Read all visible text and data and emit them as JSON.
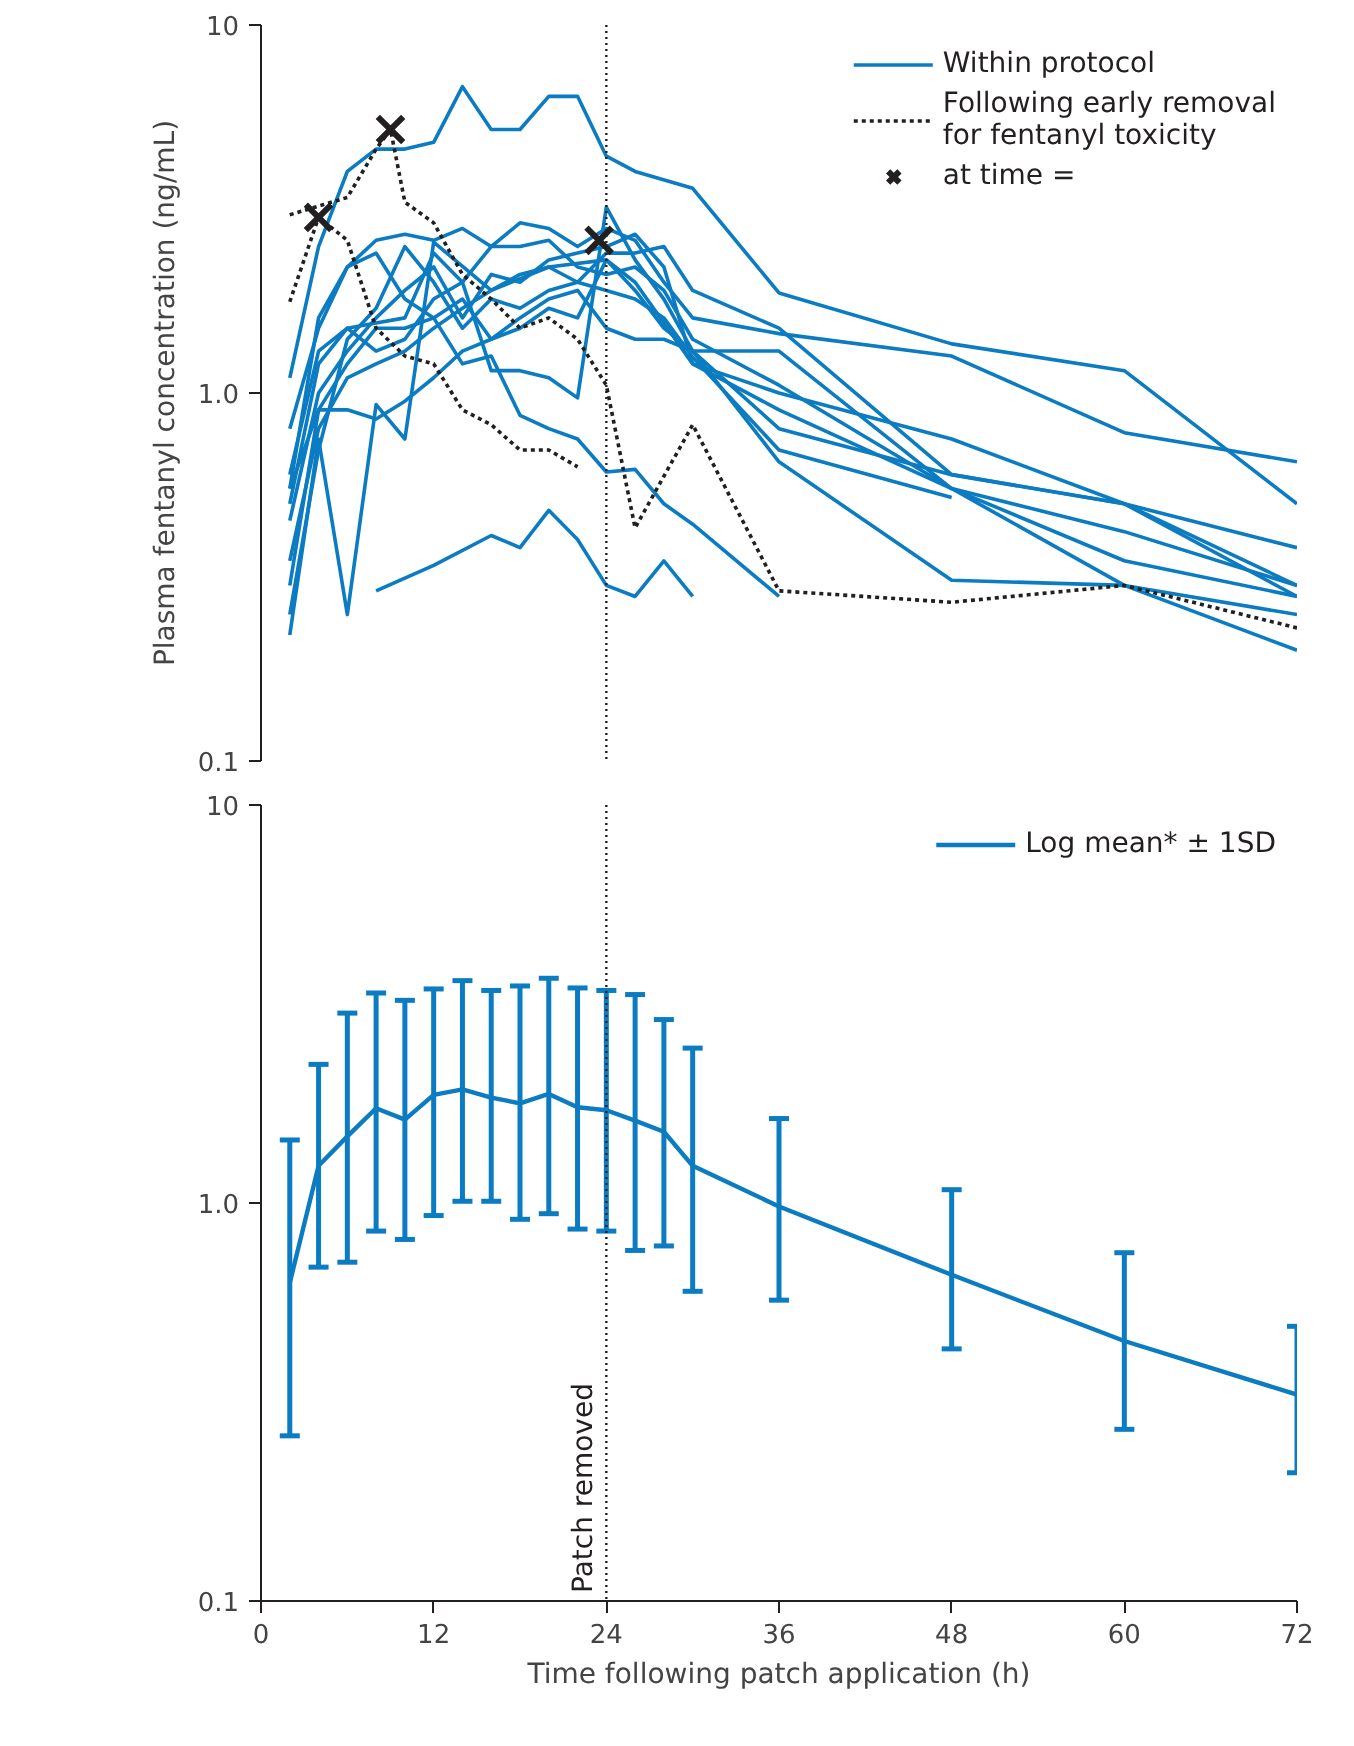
{
  "chart_data": [
    {
      "type": "line",
      "ylabel": "Plasma fentanyl concentration (ng/mL)",
      "xlim": [
        0,
        72
      ],
      "ylim": [
        0.1,
        10
      ],
      "yticks": [
        0.1,
        {
          "value": 1,
          "label": "1.0"
        },
        10
      ],
      "log": "y",
      "tick_labels": "y",
      "legend": "top right",
      "line_style": "solid",
      "ref_lines": [
        {
          "axis": "x",
          "value": 24,
          "line_style": "dotted",
          "color": "#231f20"
        }
      ],
      "series": [
        {
          "name": "Within protocol",
          "color": "#0b7cc1",
          "x": [
            2,
            4,
            6,
            8,
            10,
            12,
            14,
            16,
            18,
            20,
            22,
            24,
            26,
            30,
            36,
            48,
            60,
            72
          ],
          "values": [
            1.1,
            2.5,
            4.0,
            4.6,
            4.6,
            4.8,
            6.8,
            5.2,
            5.2,
            6.4,
            6.4,
            4.4,
            4.0,
            3.6,
            1.87,
            1.36,
            1.15,
            0.5
          ]
        },
        {
          "color": "#0b7cc1",
          "x": [
            2,
            4,
            6,
            8,
            10,
            12,
            14,
            16,
            18,
            20,
            22,
            24,
            26,
            28,
            30,
            36,
            48,
            60,
            72
          ],
          "values": [
            0.55,
            1.6,
            2.2,
            2.6,
            2.7,
            2.6,
            2.8,
            2.5,
            2.9,
            2.8,
            2.5,
            2.8,
            2.6,
            2.0,
            1.6,
            1.45,
            1.26,
            0.78,
            0.65
          ]
        },
        {
          "color": "#0b7cc1",
          "x": [
            8,
            12,
            16,
            18,
            20,
            22,
            24,
            26,
            28,
            30
          ],
          "values": [
            0.29,
            0.34,
            0.41,
            0.38,
            0.48,
            0.4,
            0.3,
            0.28,
            0.35,
            0.28
          ]
        },
        {
          "color": "#0b7cc1",
          "x": [
            2,
            4,
            6,
            8,
            10,
            12,
            16,
            20,
            24,
            26,
            30,
            36,
            48,
            60,
            72
          ],
          "values": [
            0.22,
            0.75,
            0.25,
            0.93,
            0.75,
            2.57,
            1.9,
            2.2,
            2.3,
            2.0,
            1.2,
            0.9,
            0.55,
            0.42,
            0.3
          ]
        },
        {
          "color": "#0b7cc1",
          "x": [
            2,
            4,
            6,
            8,
            10,
            12,
            14,
            16,
            18,
            20,
            22,
            24,
            26,
            28,
            30,
            36,
            48,
            60,
            72
          ],
          "values": [
            0.5,
            1.2,
            1.5,
            1.55,
            1.6,
            2.4,
            2.0,
            1.15,
            1.15,
            1.1,
            0.97,
            3.2,
            2.3,
            1.8,
            1.3,
            0.8,
            0.6,
            0.5,
            0.28
          ]
        },
        {
          "color": "#0b7cc1",
          "x": [
            2,
            4,
            6,
            8,
            10,
            12,
            14,
            16,
            18,
            20,
            22,
            24,
            26,
            28,
            30,
            36
          ],
          "values": [
            0.3,
            0.9,
            1.2,
            1.5,
            1.5,
            1.6,
            1.2,
            1.26,
            0.87,
            0.8,
            0.75,
            0.61,
            0.62,
            0.5,
            0.44,
            0.28
          ]
        },
        {
          "color": "#0b7cc1",
          "x": [
            2,
            4,
            6,
            8,
            10,
            12,
            14,
            16,
            18,
            20,
            22,
            24,
            26,
            28,
            30,
            36,
            48,
            60,
            72
          ],
          "values": [
            0.45,
            1.0,
            1.3,
            1.6,
            1.9,
            2.2,
            1.6,
            2.1,
            2.0,
            2.3,
            2.4,
            2.5,
            2.7,
            2.2,
            1.2,
            1.0,
            0.75,
            0.5,
            0.3
          ]
        },
        {
          "color": "#0b7cc1",
          "x": [
            2,
            4,
            6,
            8,
            10,
            12,
            14,
            16,
            18,
            20,
            22,
            24,
            26,
            28,
            30,
            36,
            48,
            60,
            72
          ],
          "values": [
            0.6,
            1.3,
            1.5,
            1.3,
            1.4,
            1.8,
            2.0,
            2.5,
            2.5,
            2.6,
            2.2,
            2.1,
            2.2,
            1.9,
            1.4,
            1.05,
            0.55,
            0.35,
            0.28
          ]
        },
        {
          "color": "#0b7cc1",
          "x": [
            2,
            4,
            6,
            8,
            10,
            12,
            14,
            16,
            18,
            20,
            22,
            24,
            26,
            28,
            30,
            36,
            48,
            60,
            72
          ],
          "values": [
            0.25,
            0.7,
            1.4,
            1.7,
            2.5,
            2.0,
            1.5,
            1.8,
            1.7,
            1.9,
            2.0,
            2.4,
            2.4,
            2.5,
            1.9,
            1.5,
            0.6,
            0.5,
            0.38
          ]
        },
        {
          "color": "#0b7cc1",
          "x": [
            2,
            4,
            6,
            8,
            10,
            12,
            14,
            16,
            18,
            20,
            22,
            24,
            26,
            28,
            30,
            36,
            48,
            60,
            72
          ],
          "values": [
            0.8,
            1.5,
            2.2,
            2.4,
            1.8,
            1.6,
            1.8,
            1.4,
            1.5,
            1.7,
            1.6,
            2.3,
            1.9,
            1.5,
            1.3,
            0.65,
            0.31,
            0.3,
            0.25
          ]
        },
        {
          "color": "#0b7cc1",
          "x": [
            2,
            4,
            6,
            8,
            10,
            12,
            14,
            16,
            18,
            20,
            22,
            24,
            26,
            28,
            30,
            36,
            48,
            60,
            72
          ],
          "values": [
            0.55,
            0.9,
            0.9,
            0.85,
            0.95,
            1.1,
            1.3,
            1.4,
            1.6,
            1.8,
            1.9,
            1.5,
            1.4,
            1.4,
            1.3,
            1.3,
            0.55,
            0.3,
            0.2
          ]
        },
        {
          "color": "#0b7cc1",
          "x": [
            2,
            4,
            6,
            8,
            10,
            12,
            14,
            16,
            18,
            20,
            22,
            24,
            26,
            28,
            30,
            36,
            48
          ],
          "values": [
            0.35,
            0.8,
            1.1,
            1.2,
            1.3,
            1.5,
            1.7,
            1.9,
            2.1,
            2.2,
            2.0,
            1.9,
            1.8,
            1.6,
            1.25,
            0.7,
            0.52
          ]
        },
        {
          "name": "Following early removal for fentanyl toxicity",
          "line_style": "dashed",
          "color": "#231f20",
          "x": [
            2,
            4,
            6,
            8,
            10,
            12,
            14,
            16,
            18,
            20,
            22
          ],
          "values": [
            1.77,
            3.0,
            2.6,
            1.5,
            1.26,
            1.2,
            0.9,
            0.82,
            0.7,
            0.7,
            0.63
          ]
        },
        {
          "line_style": "dashed",
          "color": "#231f20",
          "x": [
            2,
            6,
            8,
            9,
            10,
            12,
            14,
            16,
            18,
            20,
            22,
            24,
            26,
            30,
            36,
            48,
            60,
            72
          ],
          "values": [
            3.05,
            3.4,
            4.6,
            5.2,
            3.3,
            2.9,
            2.1,
            1.8,
            1.5,
            1.6,
            1.4,
            1.05,
            0.43,
            0.82,
            0.29,
            0.27,
            0.3,
            0.23
          ]
        },
        {
          "type": "scatter",
          "name": "at time =",
          "marker": "cross",
          "color": "#231f20",
          "x": [
            4,
            9,
            23.5
          ],
          "values": [
            3.0,
            5.2,
            2.6
          ]
        }
      ]
    },
    {
      "type": "line",
      "xlabel": "Time following patch application (h)",
      "xlim": [
        0,
        72
      ],
      "xticks": [
        0,
        12,
        24,
        36,
        48,
        60,
        72
      ],
      "ylim": [
        0.1,
        10
      ],
      "yticks": [
        0.1,
        {
          "value": 1,
          "label": "1.0"
        },
        10
      ],
      "log": "y",
      "legend": "top right",
      "line_style": "solid",
      "ref_lines": [
        {
          "axis": "x",
          "value": 24,
          "label": "Patch removed",
          "line_style": "dotted",
          "color": "#231f20"
        }
      ],
      "series": [
        {
          "name": "Log mean* ± 1SD",
          "color": "#0b7cc1",
          "x": [
            2,
            4,
            6,
            8,
            10,
            12,
            14,
            16,
            18,
            20,
            22,
            24,
            26,
            28,
            30,
            36,
            48,
            60,
            72
          ],
          "values": [
            0.63,
            1.24,
            1.47,
            1.73,
            1.62,
            1.87,
            1.93,
            1.84,
            1.78,
            1.88,
            1.74,
            1.71,
            1.61,
            1.51,
            1.24,
            0.98,
            0.66,
            0.45,
            0.33
          ],
          "errors": [
            [
              0.26,
              1.44
            ],
            [
              0.69,
              2.23
            ],
            [
              0.71,
              3.0
            ],
            [
              0.85,
              3.37
            ],
            [
              0.81,
              3.23
            ],
            [
              0.93,
              3.45
            ],
            [
              1.01,
              3.62
            ],
            [
              1.01,
              3.42
            ],
            [
              0.91,
              3.51
            ],
            [
              0.94,
              3.67
            ],
            [
              0.86,
              3.47
            ],
            [
              0.85,
              3.42
            ],
            [
              0.76,
              3.34
            ],
            [
              0.78,
              2.89
            ],
            [
              0.6,
              2.45
            ],
            [
              0.57,
              1.63
            ],
            [
              0.43,
              1.08
            ],
            [
              0.27,
              0.75
            ],
            [
              0.21,
              0.49
            ]
          ]
        }
      ]
    }
  ]
}
